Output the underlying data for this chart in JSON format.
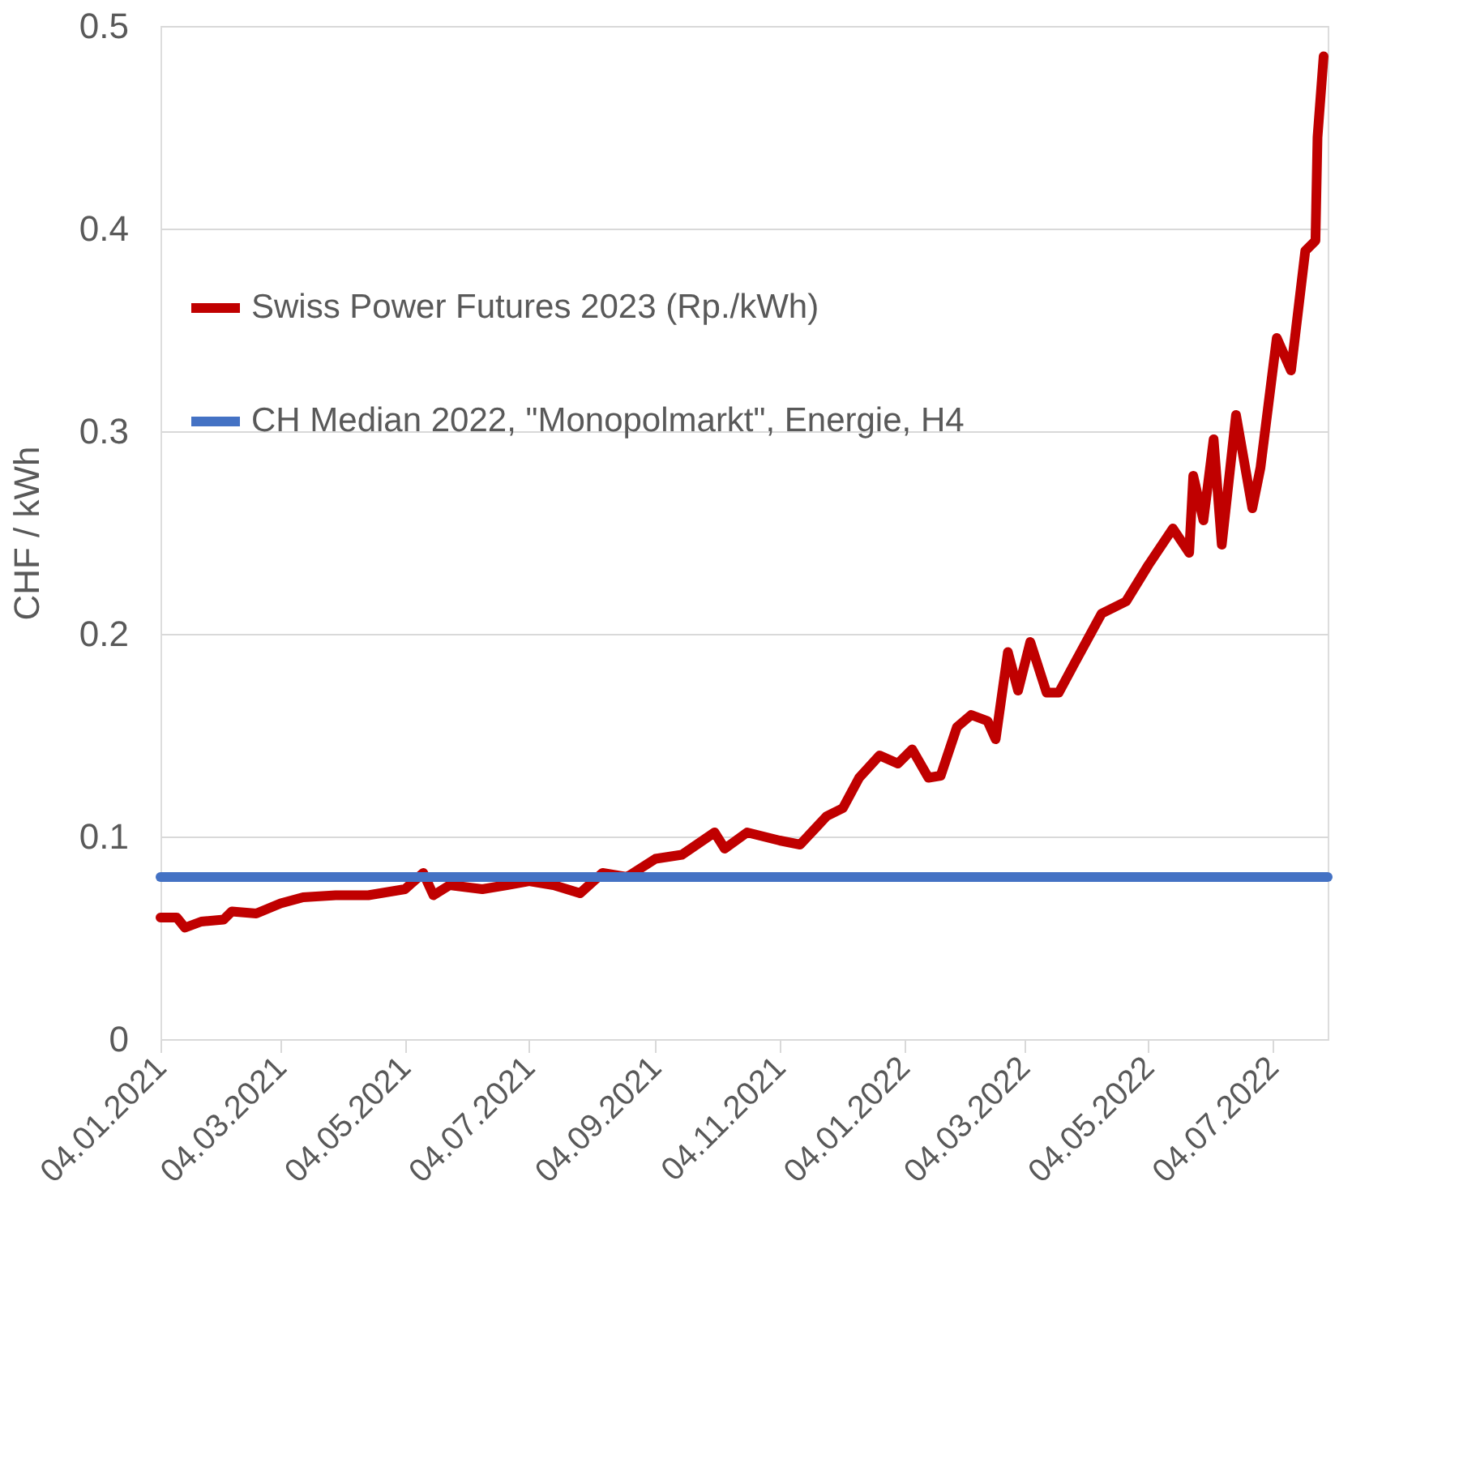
{
  "chart_data": {
    "type": "line",
    "ylabel": "CHF / kWh",
    "ylim": [
      0,
      0.5
    ],
    "yticks": [
      0,
      0.1,
      0.2,
      0.3,
      0.4,
      0.5
    ],
    "xlim": [
      "2021-01-04",
      "2022-07-31"
    ],
    "xticks": [
      {
        "value": "2021-01-04",
        "label": "04.01.2021"
      },
      {
        "value": "2021-03-04",
        "label": "04.03.2021"
      },
      {
        "value": "2021-05-04",
        "label": "04.05.2021"
      },
      {
        "value": "2021-07-04",
        "label": "04.07.2021"
      },
      {
        "value": "2021-09-04",
        "label": "04.09.2021"
      },
      {
        "value": "2021-11-04",
        "label": "04.11.2021"
      },
      {
        "value": "2022-01-04",
        "label": "04.01.2022"
      },
      {
        "value": "2022-03-04",
        "label": "04.03.2022"
      },
      {
        "value": "2022-05-04",
        "label": "04.05.2022"
      },
      {
        "value": "2022-07-04",
        "label": "04.07.2022"
      }
    ],
    "grid": "y",
    "legend": "top left",
    "line_style": "solid",
    "marker": "none",
    "series": [
      {
        "name": "Swiss Power Futures 2023 (Rp./kWh)",
        "color": "#c00000",
        "x": [
          "2021-01-04",
          "2021-01-12",
          "2021-01-16",
          "2021-01-24",
          "2021-02-04",
          "2021-02-08",
          "2021-02-20",
          "2021-03-04",
          "2021-03-15",
          "2021-03-31",
          "2021-04-16",
          "2021-05-04",
          "2021-05-13",
          "2021-05-18",
          "2021-05-26",
          "2021-06-11",
          "2021-06-23",
          "2021-07-04",
          "2021-07-16",
          "2021-07-29",
          "2021-08-09",
          "2021-08-21",
          "2021-09-04",
          "2021-09-17",
          "2021-10-03",
          "2021-10-08",
          "2021-10-19",
          "2021-11-04",
          "2021-11-14",
          "2021-11-27",
          "2021-12-05",
          "2021-12-13",
          "2021-12-23",
          "2022-01-01",
          "2022-01-08",
          "2022-01-16",
          "2022-01-22",
          "2022-01-30",
          "2022-02-06",
          "2022-02-14",
          "2022-02-18",
          "2022-02-24",
          "2022-03-01",
          "2022-03-07",
          "2022-03-15",
          "2022-03-21",
          "2022-03-29",
          "2022-04-11",
          "2022-04-23",
          "2022-05-04",
          "2022-05-16",
          "2022-05-24",
          "2022-05-26",
          "2022-05-31",
          "2022-06-05",
          "2022-06-09",
          "2022-06-16",
          "2022-06-24",
          "2022-06-28",
          "2022-07-06",
          "2022-07-13",
          "2022-07-20",
          "2022-07-25",
          "2022-07-26",
          "2022-07-29"
        ],
        "values": [
          0.06,
          0.06,
          0.055,
          0.058,
          0.059,
          0.063,
          0.062,
          0.067,
          0.07,
          0.071,
          0.071,
          0.074,
          0.082,
          0.071,
          0.076,
          0.074,
          0.076,
          0.078,
          0.076,
          0.072,
          0.082,
          0.08,
          0.089,
          0.091,
          0.102,
          0.094,
          0.102,
          0.098,
          0.096,
          0.11,
          0.114,
          0.129,
          0.14,
          0.136,
          0.143,
          0.129,
          0.13,
          0.154,
          0.16,
          0.157,
          0.148,
          0.191,
          0.172,
          0.196,
          0.171,
          0.171,
          0.186,
          0.21,
          0.216,
          0.234,
          0.252,
          0.24,
          0.278,
          0.256,
          0.296,
          0.244,
          0.308,
          0.262,
          0.282,
          0.346,
          0.33,
          0.389,
          0.394,
          0.445,
          0.485
        ]
      },
      {
        "name": "CH Median 2022, \"Monopolmarkt\", Energie, H4",
        "color": "#4472c4",
        "x": [
          "2021-01-04",
          "2022-07-31"
        ],
        "values": [
          0.08,
          0.08
        ]
      }
    ]
  }
}
